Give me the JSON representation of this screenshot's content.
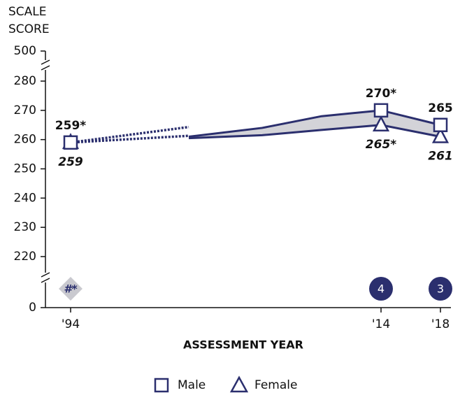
{
  "chart_data": {
    "type": "line",
    "y_label_lines": [
      "SCALE",
      "SCORE"
    ],
    "x_label": "ASSESSMENT YEAR",
    "categories": [
      "'94",
      null,
      null,
      null,
      "'14",
      "'18"
    ],
    "ylim": [
      0,
      500
    ],
    "yticks": [
      0,
      220,
      230,
      240,
      250,
      260,
      270,
      280,
      500
    ],
    "area_color": "#d3d3d8",
    "series": [
      {
        "name": "Male",
        "color": "#2b2f6e",
        "marker": "square",
        "values": [
          259,
          261,
          264,
          268,
          270,
          265
        ],
        "dotted_to": 264.3,
        "value_labels": [
          "259*",
          null,
          null,
          null,
          "270*",
          "265"
        ]
      },
      {
        "name": "Female",
        "color": "#2b2f6e",
        "marker": "triangle",
        "values": [
          259,
          260.5,
          261.5,
          263.3,
          265,
          261
        ],
        "dotted_to": 261.3,
        "value_labels": [
          "259",
          null,
          null,
          null,
          "265*",
          "261"
        ]
      }
    ],
    "gap_labels": [
      "#*",
      null,
      null,
      null,
      "4",
      "3"
    ]
  }
}
